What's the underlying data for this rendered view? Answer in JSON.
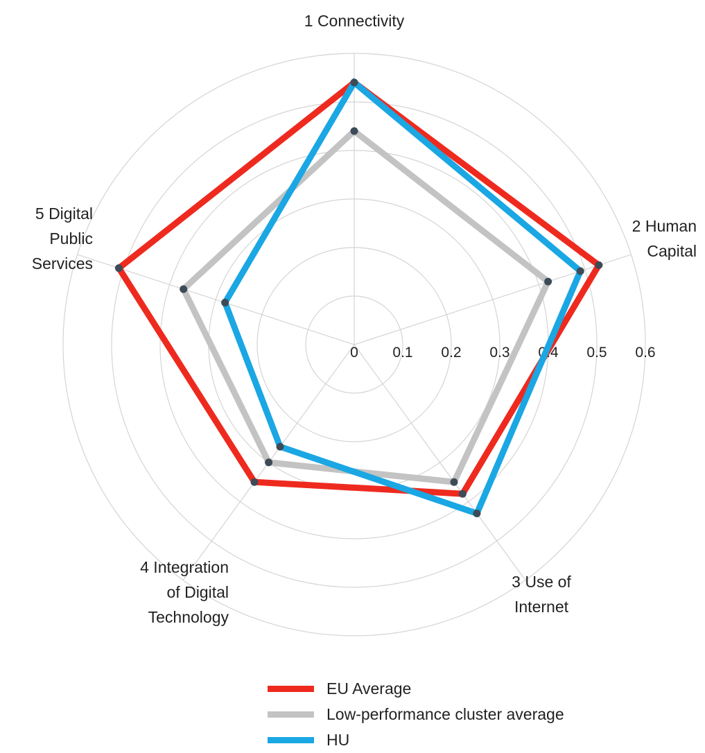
{
  "chart_data": {
    "type": "radar",
    "title": "",
    "axes": [
      "1 Connectivity",
      "2 Human\nCapital",
      "3 Use of\nInternet",
      "4 Integration\nof Digital\nTechnology",
      "5 Digital\nPublic\nServices"
    ],
    "radial_ticks": [
      "0",
      "0.1",
      "0.2",
      "0.3",
      "0.4",
      "0.5",
      "0.6"
    ],
    "rlim": [
      0,
      0.6
    ],
    "grid": true,
    "legend_position": "bottom",
    "series": [
      {
        "name": "EU Average",
        "color": "#ee2a1f",
        "values": [
          0.54,
          0.53,
          0.38,
          0.35,
          0.51
        ]
      },
      {
        "name": "Low-performance cluster average",
        "color": "#c3c3c3",
        "values": [
          0.44,
          0.42,
          0.35,
          0.3,
          0.37
        ]
      },
      {
        "name": "HU",
        "color": "#1aa7e3",
        "values": [
          0.54,
          0.49,
          0.43,
          0.26,
          0.28
        ]
      }
    ]
  }
}
